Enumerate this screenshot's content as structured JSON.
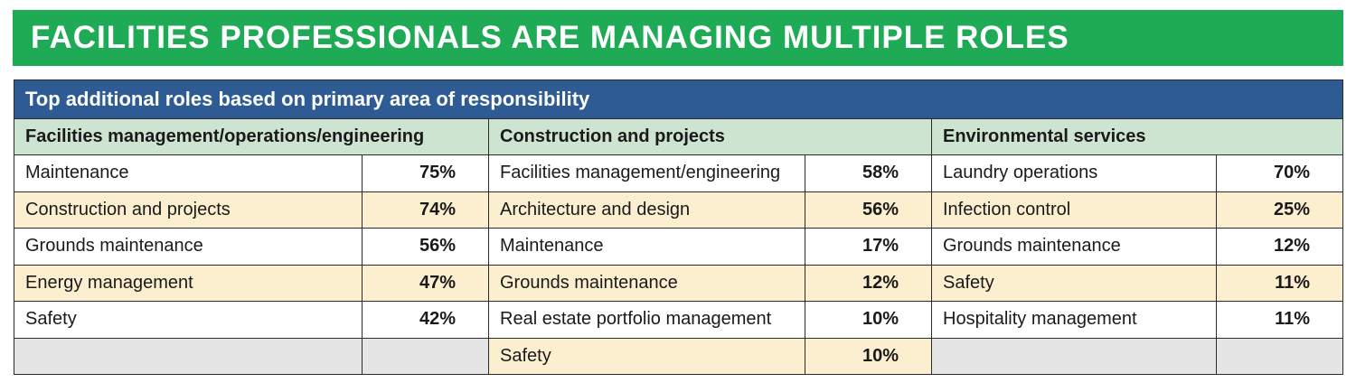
{
  "title": "FACILITIES PROFESSIONALS ARE MANAGING MULTIPLE ROLES",
  "subtitle": "Top additional roles based on primary area of responsibility",
  "colors": {
    "banner": "#1faa55",
    "subtitle_bar": "#2e5b93",
    "header_row": "#cde5d0",
    "shaded_row": "#fcefcf",
    "empty_cell": "#e5e5e5"
  },
  "chart_data": {
    "type": "table",
    "title": "FACILITIES PROFESSIONALS ARE MANAGING MULTIPLE ROLES",
    "subtitle": "Top additional roles based on primary area of responsibility",
    "groups": [
      {
        "name": "Facilities management/operations/engineering",
        "rows": [
          {
            "role": "Maintenance",
            "value": "75%"
          },
          {
            "role": "Construction and projects",
            "value": "74%"
          },
          {
            "role": "Grounds maintenance",
            "value": "56%"
          },
          {
            "role": "Energy management",
            "value": "47%"
          },
          {
            "role": "Safety",
            "value": "42%"
          }
        ]
      },
      {
        "name": "Construction and projects",
        "rows": [
          {
            "role": "Facilities management/engineering",
            "value": "58%"
          },
          {
            "role": "Architecture and design",
            "value": "56%"
          },
          {
            "role": "Maintenance",
            "value": "17%"
          },
          {
            "role": "Grounds maintenance",
            "value": "12%"
          },
          {
            "role": "Real estate portfolio management",
            "value": "10%"
          },
          {
            "role": "Safety",
            "value": "10%"
          }
        ]
      },
      {
        "name": "Environmental services",
        "rows": [
          {
            "role": "Laundry operations",
            "value": "70%"
          },
          {
            "role": "Infection control",
            "value": "25%"
          },
          {
            "role": "Grounds maintenance",
            "value": "12%"
          },
          {
            "role": "Safety",
            "value": "11%"
          },
          {
            "role": "Hospitality management",
            "value": "11%"
          }
        ]
      }
    ]
  }
}
